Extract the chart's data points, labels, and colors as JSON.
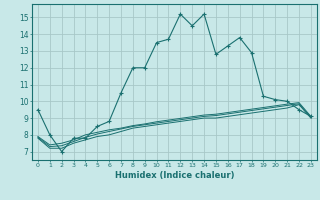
{
  "title": "",
  "xlabel": "Humidex (Indice chaleur)",
  "bg_color": "#c8e8e8",
  "grid_color": "#a8c8c8",
  "line_color": "#1a7070",
  "xlim": [
    -0.5,
    23.5
  ],
  "ylim": [
    6.5,
    15.8
  ],
  "yticks": [
    7,
    8,
    9,
    10,
    11,
    12,
    13,
    14,
    15
  ],
  "xticks": [
    0,
    1,
    2,
    3,
    4,
    5,
    6,
    7,
    8,
    9,
    10,
    11,
    12,
    13,
    14,
    15,
    16,
    17,
    18,
    19,
    20,
    21,
    22,
    23
  ],
  "main_line": {
    "x": [
      0,
      1,
      2,
      3,
      4,
      5,
      6,
      7,
      8,
      9,
      10,
      11,
      12,
      13,
      14,
      15,
      16,
      17,
      18,
      19,
      20,
      21,
      22,
      23
    ],
    "y": [
      9.5,
      8.0,
      7.0,
      7.8,
      7.8,
      8.5,
      8.8,
      10.5,
      12.0,
      12.0,
      13.5,
      13.7,
      15.2,
      14.5,
      15.2,
      12.8,
      13.3,
      13.8,
      12.9,
      10.3,
      10.1,
      10.0,
      9.5,
      9.1
    ]
  },
  "line2": {
    "x": [
      0,
      1,
      2,
      3,
      4,
      5,
      6,
      7,
      8,
      9,
      10,
      11,
      12,
      13,
      14,
      15,
      16,
      17,
      18,
      19,
      20,
      21,
      22,
      23
    ],
    "y": [
      7.8,
      7.2,
      7.2,
      7.5,
      7.7,
      7.9,
      8.0,
      8.2,
      8.4,
      8.5,
      8.6,
      8.7,
      8.8,
      8.9,
      9.0,
      9.0,
      9.1,
      9.2,
      9.3,
      9.4,
      9.5,
      9.6,
      9.8,
      9.0
    ]
  },
  "line3": {
    "x": [
      0,
      1,
      2,
      3,
      4,
      5,
      6,
      7,
      8,
      9,
      10,
      11,
      12,
      13,
      14,
      15,
      16,
      17,
      18,
      19,
      20,
      21,
      22,
      23
    ],
    "y": [
      7.85,
      7.3,
      7.35,
      7.6,
      7.85,
      8.05,
      8.2,
      8.35,
      8.5,
      8.6,
      8.7,
      8.8,
      8.9,
      9.0,
      9.1,
      9.15,
      9.25,
      9.35,
      9.45,
      9.55,
      9.65,
      9.75,
      9.85,
      9.05
    ]
  },
  "line4": {
    "x": [
      0,
      1,
      2,
      3,
      4,
      5,
      6,
      7,
      8,
      9,
      10,
      11,
      12,
      13,
      14,
      15,
      16,
      17,
      18,
      19,
      20,
      21,
      22,
      23
    ],
    "y": [
      7.9,
      7.4,
      7.5,
      7.7,
      8.0,
      8.15,
      8.3,
      8.4,
      8.55,
      8.65,
      8.78,
      8.88,
      8.98,
      9.08,
      9.18,
      9.23,
      9.33,
      9.43,
      9.53,
      9.63,
      9.73,
      9.83,
      9.92,
      9.1
    ]
  }
}
